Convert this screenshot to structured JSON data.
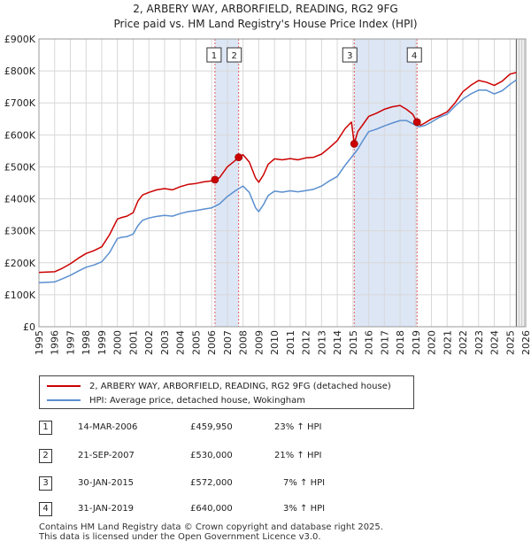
{
  "title_line1": "2, ARBERY WAY, ARBORFIELD, READING, RG2 9FG",
  "title_line2": "Price paid vs. HM Land Registry's House Price Index (HPI)",
  "chart_data": {
    "type": "line",
    "title": "2, ARBERY WAY, ARBORFIELD, READING, RG2 9FG — Price paid vs. HM Land Registry's House Price Index (HPI)",
    "xlabel": "",
    "ylabel": "",
    "xlim": [
      1995,
      2026
    ],
    "ylim": [
      0,
      900000
    ],
    "x_ticks": [
      "1995",
      "1996",
      "1997",
      "1998",
      "1999",
      "2000",
      "2001",
      "2002",
      "2003",
      "2004",
      "2005",
      "2006",
      "2007",
      "2008",
      "2009",
      "2010",
      "2011",
      "2012",
      "2013",
      "2014",
      "2015",
      "2016",
      "2017",
      "2018",
      "2019",
      "2020",
      "2021",
      "2022",
      "2023",
      "2024",
      "2025",
      "2026"
    ],
    "y_ticks": [
      {
        "value": 0,
        "label": "£0"
      },
      {
        "value": 100000,
        "label": "£100K"
      },
      {
        "value": 200000,
        "label": "£200K"
      },
      {
        "value": 300000,
        "label": "£300K"
      },
      {
        "value": 400000,
        "label": "£400K"
      },
      {
        "value": 500000,
        "label": "£500K"
      },
      {
        "value": 600000,
        "label": "£600K"
      },
      {
        "value": 700000,
        "label": "£700K"
      },
      {
        "value": 800000,
        "label": "£800K"
      },
      {
        "value": 900000,
        "label": "£900K"
      }
    ],
    "grid": true,
    "series": [
      {
        "name": "2, ARBERY WAY, ARBORFIELD, READING, RG2 9FG (detached house)",
        "color": "#cc0000",
        "x": [
          1995.0,
          1996.0,
          1996.5,
          1997.0,
          1997.5,
          1998.0,
          1998.5,
          1999.0,
          1999.5,
          2000.0,
          2000.3,
          2000.6,
          2001.0,
          2001.3,
          2001.6,
          2002.0,
          2002.5,
          2003.0,
          2003.5,
          2004.0,
          2004.5,
          2005.0,
          2005.5,
          2006.0,
          2006.21,
          2006.5,
          2007.0,
          2007.5,
          2007.72,
          2008.0,
          2008.4,
          2008.8,
          2009.0,
          2009.3,
          2009.6,
          2010.0,
          2010.5,
          2011.0,
          2011.5,
          2012.0,
          2012.5,
          2013.0,
          2013.5,
          2014.0,
          2014.5,
          2014.9,
          2015.08,
          2015.3,
          2015.6,
          2016.0,
          2016.5,
          2017.0,
          2017.5,
          2018.0,
          2018.4,
          2018.8,
          2019.08,
          2019.3,
          2019.6,
          2020.0,
          2020.5,
          2021.0,
          2021.5,
          2022.0,
          2022.5,
          2023.0,
          2023.5,
          2024.0,
          2024.5,
          2025.0,
          2025.4
        ],
        "values": [
          170000,
          172000,
          183000,
          197000,
          214000,
          229000,
          238000,
          250000,
          288000,
          337000,
          342000,
          346000,
          357000,
          393000,
          412000,
          420000,
          428000,
          432000,
          428000,
          438000,
          445000,
          448000,
          453000,
          456000,
          459950,
          466000,
          500000,
          520000,
          530000,
          538000,
          515000,
          465000,
          452000,
          475000,
          508000,
          525000,
          522000,
          526000,
          522000,
          528000,
          530000,
          540000,
          560000,
          582000,
          620000,
          640000,
          572000,
          610000,
          630000,
          658000,
          668000,
          680000,
          688000,
          692000,
          680000,
          665000,
          640000,
          630000,
          638000,
          650000,
          660000,
          672000,
          700000,
          735000,
          755000,
          770000,
          765000,
          755000,
          768000,
          790000,
          795000
        ]
      },
      {
        "name": "HPI: Average price, detached house, Wokingham",
        "color": "#5b8fd0",
        "x": [
          1995.0,
          1996.0,
          1996.5,
          1997.0,
          1997.5,
          1998.0,
          1998.5,
          1999.0,
          1999.5,
          2000.0,
          2000.3,
          2000.6,
          2001.0,
          2001.3,
          2001.6,
          2002.0,
          2002.5,
          2003.0,
          2003.5,
          2004.0,
          2004.5,
          2005.0,
          2005.5,
          2006.0,
          2006.5,
          2007.0,
          2007.5,
          2008.0,
          2008.4,
          2008.8,
          2009.0,
          2009.3,
          2009.6,
          2010.0,
          2010.5,
          2011.0,
          2011.5,
          2012.0,
          2012.5,
          2013.0,
          2013.5,
          2014.0,
          2014.5,
          2014.9,
          2015.3,
          2015.6,
          2016.0,
          2016.5,
          2017.0,
          2017.5,
          2018.0,
          2018.4,
          2018.8,
          2019.2,
          2019.6,
          2020.0,
          2020.5,
          2021.0,
          2021.5,
          2022.0,
          2022.5,
          2023.0,
          2023.5,
          2024.0,
          2024.5,
          2025.0,
          2025.4
        ],
        "values": [
          138000,
          140000,
          150000,
          161000,
          174000,
          186000,
          193000,
          203000,
          232000,
          276000,
          280000,
          282000,
          290000,
          316000,
          333000,
          340000,
          345000,
          348000,
          346000,
          354000,
          360000,
          363000,
          368000,
          372000,
          384000,
          407000,
          425000,
          440000,
          420000,
          372000,
          360000,
          382000,
          410000,
          424000,
          421000,
          425000,
          422000,
          426000,
          430000,
          440000,
          456000,
          470000,
          505000,
          530000,
          555000,
          580000,
          610000,
          618000,
          628000,
          637000,
          645000,
          645000,
          635000,
          625000,
          630000,
          640000,
          655000,
          665000,
          690000,
          712000,
          728000,
          740000,
          740000,
          728000,
          738000,
          758000,
          772000
        ]
      }
    ],
    "transactions": [
      {
        "label": "1",
        "date": "14-MAR-2006",
        "x": 2006.21,
        "price": 459950,
        "price_label": "£459,950",
        "hpi_change": "23% ↑ HPI"
      },
      {
        "label": "2",
        "date": "21-SEP-2007",
        "x": 2007.72,
        "price": 530000,
        "price_label": "£530,000",
        "hpi_change": "21% ↑ HPI"
      },
      {
        "label": "3",
        "date": "30-JAN-2015",
        "x": 2015.08,
        "price": 572000,
        "price_label": "£572,000",
        "hpi_change": "7% ↑ HPI"
      },
      {
        "label": "4",
        "date": "31-JAN-2019",
        "x": 2019.08,
        "price": 640000,
        "price_label": "£640,000",
        "hpi_change": "3% ↑ HPI"
      }
    ],
    "shaded_spans": [
      [
        2006.21,
        2007.72
      ],
      [
        2015.08,
        2019.08
      ]
    ],
    "forecast_start": 2025.4
  },
  "legend": {
    "property": "2, ARBERY WAY, ARBORFIELD, READING, RG2 9FG (detached house)",
    "hpi": "HPI: Average price, detached house, Wokingham"
  },
  "footer_line1": "Contains HM Land Registry data © Crown copyright and database right 2025.",
  "footer_line2": "This data is licensed under the Open Government Licence v3.0.",
  "colors": {
    "property": "#cc0000",
    "hpi": "#5b8fd0",
    "span": "#dde6f5",
    "grid": "#d8d8d8"
  }
}
